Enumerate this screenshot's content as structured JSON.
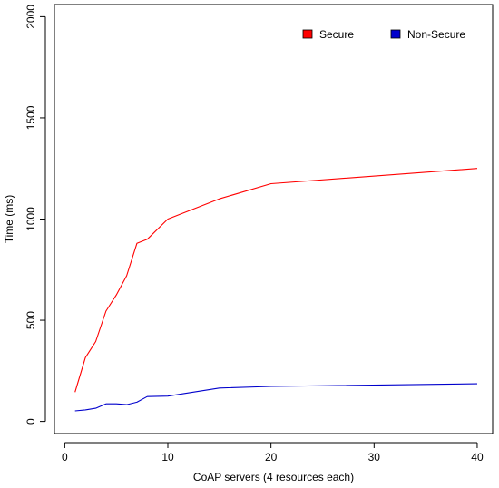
{
  "chart_data": {
    "type": "line",
    "title": "",
    "xlabel": "CoAP servers (4 resources each)",
    "ylabel": "Time (ms)",
    "xlim": [
      -1,
      41.5
    ],
    "ylim": [
      -60,
      2060
    ],
    "xticks": [
      0,
      10,
      20,
      30,
      40
    ],
    "yticks": [
      0,
      500,
      1000,
      1500,
      2000
    ],
    "grid": false,
    "legend_position": "top-right",
    "series": [
      {
        "name": "Secure",
        "color": "#ff0000",
        "x": [
          1,
          2,
          3,
          4,
          5,
          6,
          7,
          8,
          10,
          15,
          20,
          40
        ],
        "y": [
          145,
          315,
          395,
          545,
          625,
          720,
          880,
          900,
          1000,
          1100,
          1175,
          1250
        ]
      },
      {
        "name": "Non-Secure",
        "color": "#0000cc",
        "x": [
          1,
          2,
          3,
          4,
          5,
          6,
          7,
          8,
          10,
          15,
          20,
          40
        ],
        "y": [
          52,
          57,
          65,
          87,
          87,
          83,
          95,
          123,
          125,
          165,
          173,
          186
        ]
      }
    ]
  }
}
